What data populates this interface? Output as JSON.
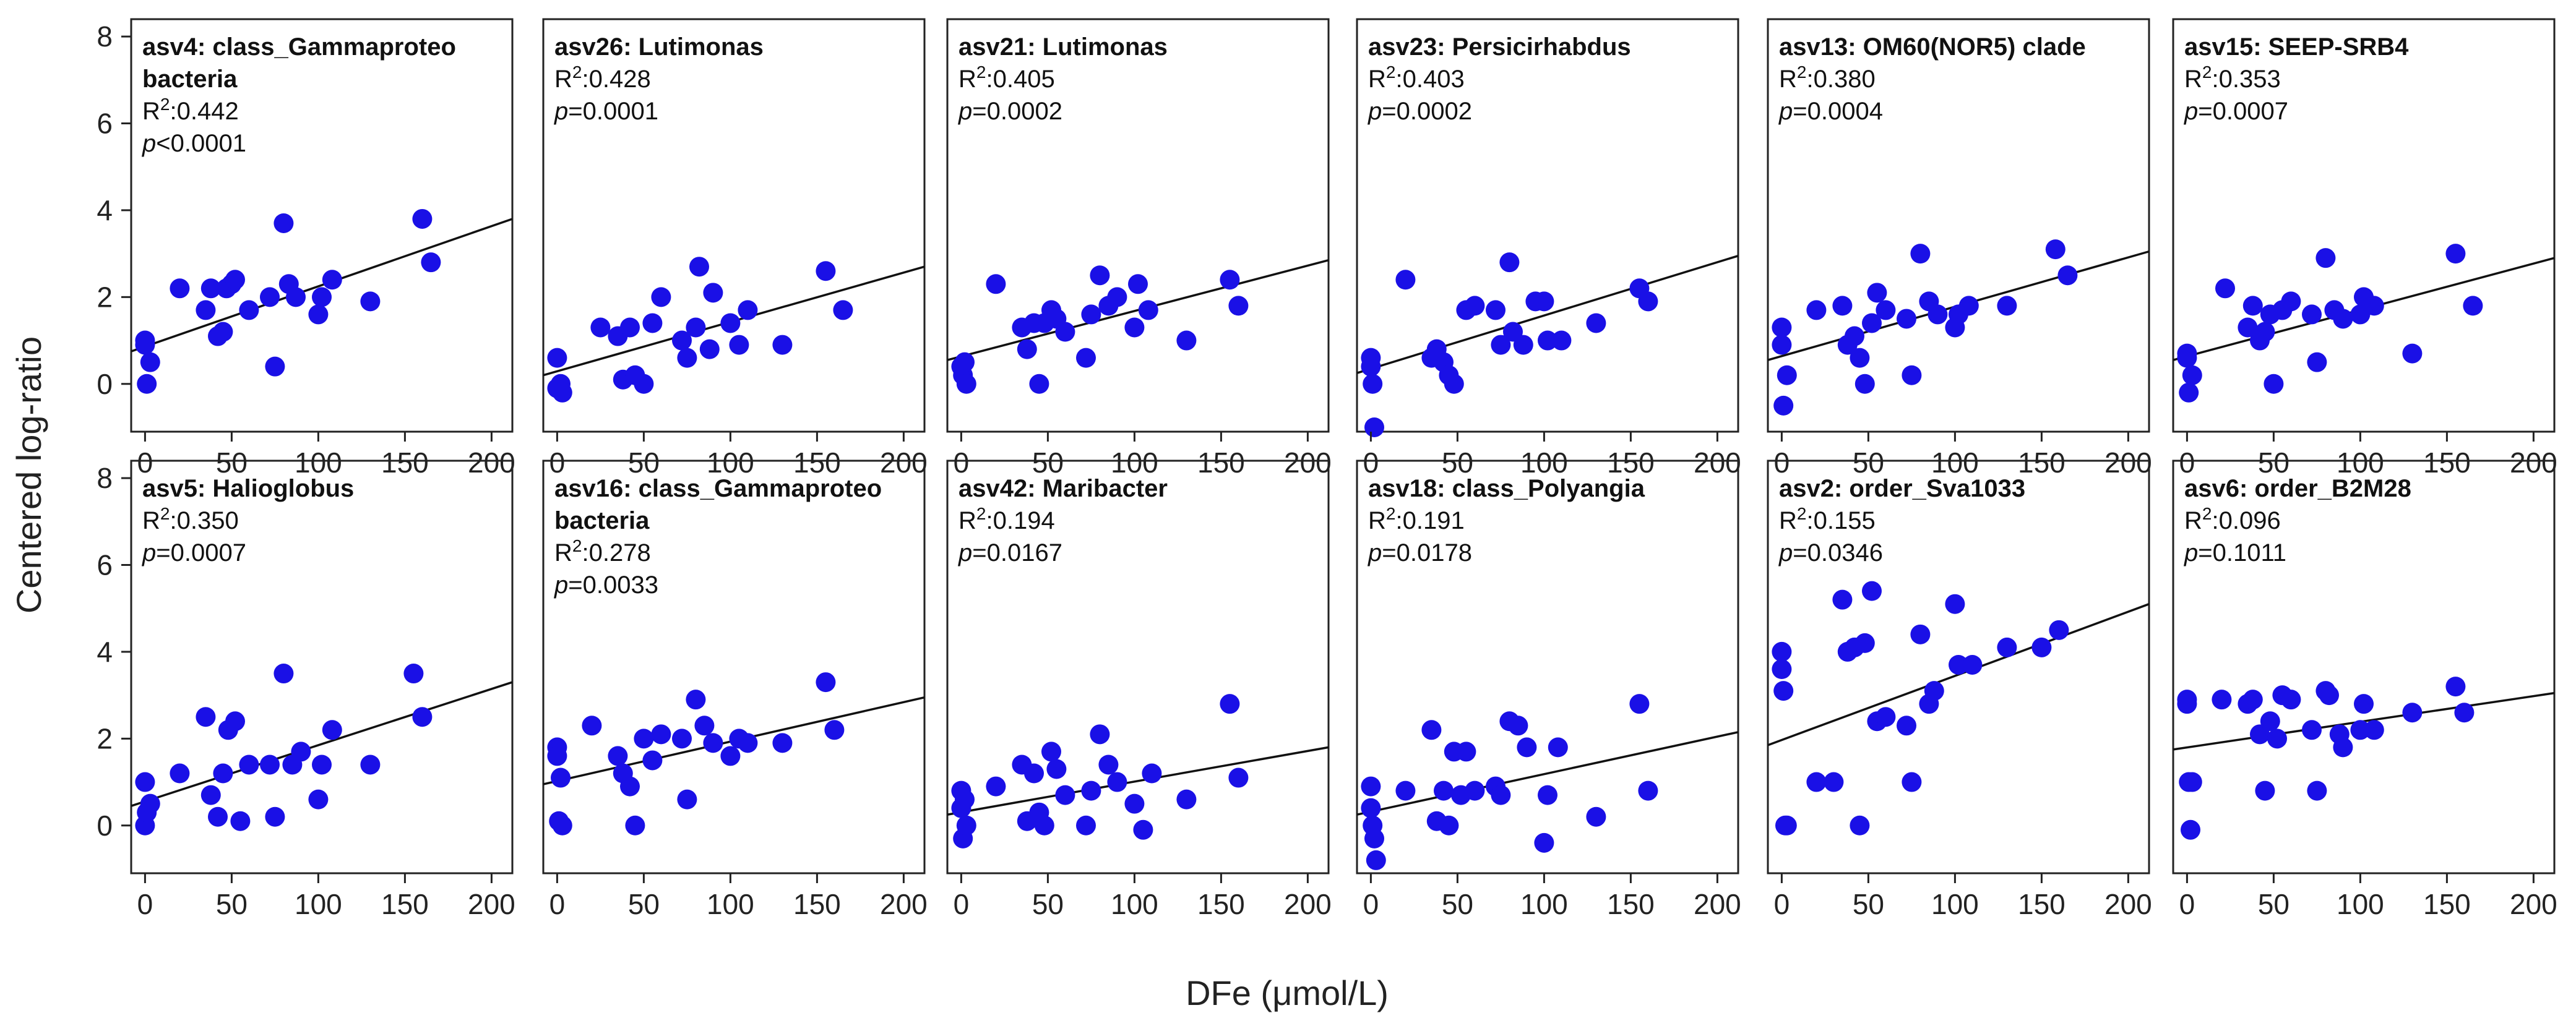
{
  "figure": {
    "ylabel": "Centered log-ratio",
    "xlabel": "DFe (μmol/L)",
    "x_ticks": [
      "0",
      "50",
      "100",
      "150",
      "200"
    ],
    "y_ticks": [
      "0",
      "2",
      "4",
      "6",
      "8"
    ],
    "xlim": [
      -8,
      212
    ],
    "ylim": [
      -1.1,
      8.4
    ]
  },
  "colors": {
    "points": "#1a10e6",
    "fit_line": "#111111",
    "frame": "#222222"
  },
  "chart_data": [
    {
      "type": "scatter",
      "title_lines": [
        "asv4: class_Gammaproteo",
        "bacteria"
      ],
      "r2": "0.442",
      "p_label": "p",
      "p_value": "<0.0001",
      "fit": [
        [
          -8,
          0.75
        ],
        [
          212,
          3.8
        ]
      ],
      "x": [
        0,
        0,
        1,
        3,
        20,
        35,
        38,
        42,
        45,
        47,
        50,
        52,
        60,
        72,
        75,
        80,
        83,
        87,
        100,
        102,
        108,
        130,
        160,
        165
      ],
      "y": [
        1.0,
        0.9,
        0.0,
        0.5,
        2.2,
        1.7,
        2.2,
        1.1,
        1.2,
        2.2,
        2.3,
        2.4,
        1.7,
        2.0,
        0.4,
        3.7,
        2.3,
        2.0,
        1.6,
        2.0,
        2.4,
        1.9,
        3.8,
        2.8
      ]
    },
    {
      "type": "scatter",
      "title_lines": [
        "asv26: Lutimonas"
      ],
      "r2": "0.428",
      "p_label": "p",
      "p_value": "0.0001",
      "fit": [
        [
          -8,
          0.2
        ],
        [
          212,
          2.7
        ]
      ],
      "x": [
        0,
        0,
        2,
        3,
        25,
        35,
        38,
        42,
        45,
        50,
        55,
        60,
        72,
        75,
        80,
        82,
        88,
        90,
        100,
        105,
        110,
        130,
        155,
        165
      ],
      "y": [
        0.6,
        -0.1,
        0.0,
        -0.2,
        1.3,
        1.1,
        0.1,
        1.3,
        0.2,
        0.0,
        1.4,
        2.0,
        1.0,
        0.6,
        1.3,
        2.7,
        0.8,
        2.1,
        1.4,
        0.9,
        1.7,
        0.9,
        2.6,
        1.7
      ]
    },
    {
      "type": "scatter",
      "title_lines": [
        "asv21: Lutimonas"
      ],
      "r2": "0.405",
      "p_label": "p",
      "p_value": "0.0002",
      "fit": [
        [
          -8,
          0.55
        ],
        [
          212,
          2.85
        ]
      ],
      "x": [
        0,
        1,
        2,
        3,
        20,
        35,
        38,
        42,
        45,
        48,
        52,
        55,
        60,
        72,
        75,
        80,
        85,
        90,
        100,
        102,
        108,
        130,
        155,
        160
      ],
      "y": [
        0.4,
        0.2,
        0.5,
        0.0,
        2.3,
        1.3,
        0.8,
        1.4,
        0.0,
        1.4,
        1.7,
        1.5,
        1.2,
        0.6,
        1.6,
        2.5,
        1.8,
        2.0,
        1.3,
        2.3,
        1.7,
        1.0,
        2.4,
        1.8
      ]
    },
    {
      "type": "scatter",
      "title_lines": [
        "asv23: Persicirhabdus"
      ],
      "r2": "0.403",
      "p_label": "p",
      "p_value": "0.0002",
      "fit": [
        [
          -8,
          0.25
        ],
        [
          212,
          2.95
        ]
      ],
      "x": [
        0,
        0,
        1,
        2,
        20,
        35,
        38,
        42,
        45,
        48,
        55,
        60,
        72,
        75,
        80,
        82,
        88,
        95,
        100,
        102,
        110,
        130,
        155,
        160
      ],
      "y": [
        0.6,
        0.4,
        0.0,
        -1.0,
        2.4,
        0.6,
        0.8,
        0.5,
        0.2,
        0.0,
        1.7,
        1.8,
        1.7,
        0.9,
        2.8,
        1.2,
        0.9,
        1.9,
        1.9,
        1.0,
        1.0,
        1.4,
        2.2,
        1.9
      ]
    },
    {
      "type": "scatter",
      "title_lines": [
        "asv13: OM60(NOR5) clade"
      ],
      "r2": "0.380",
      "p_label": "p",
      "p_value": "0.0004",
      "fit": [
        [
          -8,
          0.55
        ],
        [
          212,
          3.05
        ]
      ],
      "x": [
        0,
        0,
        1,
        3,
        20,
        35,
        38,
        42,
        45,
        48,
        52,
        55,
        60,
        72,
        75,
        80,
        85,
        90,
        100,
        102,
        108,
        130,
        158,
        165
      ],
      "y": [
        1.3,
        0.9,
        -0.5,
        0.2,
        1.7,
        1.8,
        0.9,
        1.1,
        0.6,
        0.0,
        1.4,
        2.1,
        1.7,
        1.5,
        0.2,
        3.0,
        1.9,
        1.6,
        1.3,
        1.6,
        1.8,
        1.8,
        3.1,
        2.5
      ]
    },
    {
      "type": "scatter",
      "title_lines": [
        "asv15: SEEP-SRB4"
      ],
      "r2": "0.353",
      "p_label": "p",
      "p_value": "0.0007",
      "fit": [
        [
          -8,
          0.55
        ],
        [
          212,
          2.9
        ]
      ],
      "x": [
        0,
        0,
        1,
        3,
        22,
        35,
        38,
        42,
        45,
        48,
        50,
        55,
        60,
        72,
        75,
        80,
        85,
        90,
        100,
        102,
        108,
        130,
        155,
        165
      ],
      "y": [
        0.7,
        0.6,
        -0.2,
        0.2,
        2.2,
        1.3,
        1.8,
        1.0,
        1.2,
        1.6,
        0.0,
        1.7,
        1.9,
        1.6,
        0.5,
        2.9,
        1.7,
        1.5,
        1.6,
        2.0,
        1.8,
        0.7,
        3.0,
        1.8
      ]
    },
    {
      "type": "scatter",
      "title_lines": [
        "asv5: Halioglobus"
      ],
      "r2": "0.350",
      "p_label": "p",
      "p_value": "0.0007",
      "fit": [
        [
          -8,
          0.45
        ],
        [
          212,
          3.3
        ]
      ],
      "x": [
        0,
        0,
        1,
        3,
        20,
        35,
        38,
        42,
        45,
        48,
        52,
        55,
        60,
        72,
        75,
        80,
        85,
        90,
        100,
        102,
        108,
        130,
        155,
        160
      ],
      "y": [
        1.0,
        0.0,
        0.3,
        0.5,
        1.2,
        2.5,
        0.7,
        0.2,
        1.2,
        2.2,
        2.4,
        0.1,
        1.4,
        1.4,
        0.2,
        3.5,
        1.4,
        1.7,
        0.6,
        1.4,
        2.2,
        1.4,
        3.5,
        2.5
      ]
    },
    {
      "type": "scatter",
      "title_lines": [
        "asv16: class_Gammaproteo",
        "bacteria"
      ],
      "r2": "0.278",
      "p_label": "p",
      "p_value": "0.0033",
      "fit": [
        [
          -8,
          0.95
        ],
        [
          212,
          2.95
        ]
      ],
      "x": [
        0,
        0,
        1,
        2,
        3,
        20,
        35,
        38,
        42,
        45,
        50,
        55,
        60,
        72,
        75,
        80,
        85,
        90,
        100,
        105,
        110,
        130,
        155,
        160
      ],
      "y": [
        1.8,
        1.6,
        0.1,
        1.1,
        0.0,
        2.3,
        1.6,
        1.2,
        0.9,
        0.0,
        2.0,
        1.5,
        2.1,
        2.0,
        0.6,
        2.9,
        2.3,
        1.9,
        1.6,
        2.0,
        1.9,
        1.9,
        3.3,
        2.2
      ]
    },
    {
      "type": "scatter",
      "title_lines": [
        "asv42: Maribacter"
      ],
      "r2": "0.194",
      "p_label": "p",
      "p_value": "0.0167",
      "fit": [
        [
          -8,
          0.25
        ],
        [
          212,
          1.8
        ]
      ],
      "x": [
        0,
        0,
        1,
        2,
        3,
        20,
        35,
        38,
        42,
        45,
        48,
        52,
        55,
        60,
        72,
        75,
        80,
        85,
        90,
        100,
        105,
        110,
        130,
        155,
        160
      ],
      "y": [
        0.8,
        0.4,
        -0.3,
        0.6,
        0.0,
        0.9,
        1.4,
        0.1,
        1.2,
        0.3,
        0.0,
        1.7,
        1.3,
        0.7,
        0.0,
        0.8,
        2.1,
        1.4,
        1.0,
        0.5,
        -0.1,
        1.2,
        0.6,
        2.8,
        1.1
      ]
    },
    {
      "type": "scatter",
      "title_lines": [
        "asv18: class_Polyangia"
      ],
      "r2": "0.191",
      "p_label": "p",
      "p_value": "0.0178",
      "fit": [
        [
          -8,
          0.25
        ],
        [
          212,
          2.15
        ]
      ],
      "x": [
        0,
        0,
        1,
        2,
        3,
        20,
        35,
        38,
        42,
        45,
        48,
        52,
        55,
        60,
        72,
        75,
        80,
        85,
        90,
        100,
        102,
        108,
        130,
        155,
        160
      ],
      "y": [
        0.9,
        0.4,
        0.0,
        -0.3,
        -0.8,
        0.8,
        2.2,
        0.1,
        0.8,
        0.0,
        1.7,
        0.7,
        1.7,
        0.8,
        0.9,
        0.7,
        2.4,
        2.3,
        1.8,
        -0.4,
        0.7,
        1.8,
        0.2,
        2.8,
        0.8
      ]
    },
    {
      "type": "scatter",
      "title_lines": [
        "asv2: order_Sva1033"
      ],
      "r2": "0.155",
      "p_label": "p",
      "p_value": "0.0346",
      "fit": [
        [
          -8,
          1.85
        ],
        [
          212,
          5.1
        ]
      ],
      "x": [
        0,
        0,
        1,
        2,
        3,
        20,
        30,
        35,
        38,
        42,
        45,
        48,
        52,
        55,
        60,
        72,
        75,
        80,
        85,
        88,
        100,
        102,
        110,
        130,
        150,
        160
      ],
      "y": [
        4.0,
        3.6,
        3.1,
        0.0,
        0.0,
        1.0,
        1.0,
        5.2,
        4.0,
        4.1,
        0.0,
        4.2,
        5.4,
        2.4,
        2.5,
        2.3,
        1.0,
        4.4,
        2.8,
        3.1,
        5.1,
        3.7,
        3.7,
        4.1,
        4.1,
        4.5
      ]
    },
    {
      "type": "scatter",
      "title_lines": [
        "asv6: order_B2M28"
      ],
      "r2": "0.096",
      "p_label": "p",
      "p_value": "0.1011",
      "fit": [
        [
          -8,
          1.75
        ],
        [
          212,
          3.05
        ]
      ],
      "x": [
        0,
        0,
        1,
        2,
        3,
        20,
        35,
        38,
        42,
        45,
        48,
        52,
        55,
        60,
        72,
        75,
        80,
        82,
        88,
        90,
        100,
        102,
        108,
        130,
        155,
        160
      ],
      "y": [
        2.8,
        2.9,
        1.0,
        -0.1,
        1.0,
        2.9,
        2.8,
        2.9,
        2.1,
        0.8,
        2.4,
        2.0,
        3.0,
        2.9,
        2.2,
        0.8,
        3.1,
        3.0,
        2.1,
        1.8,
        2.2,
        2.8,
        2.2,
        2.6,
        3.2,
        2.6
      ]
    }
  ]
}
